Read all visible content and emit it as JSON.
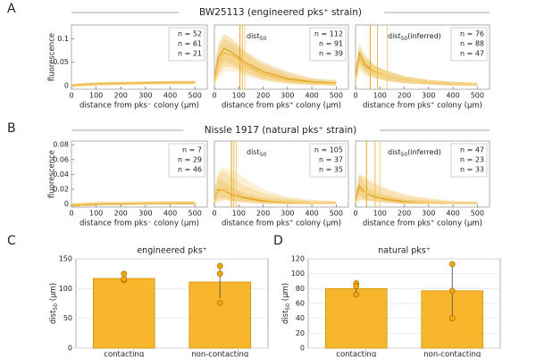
{
  "figure": {
    "panels": [
      {
        "letter": "A",
        "title": "BW25113 (engineered pks⁺ strain)"
      },
      {
        "letter": "B",
        "title": "Nissle 1917 (natural pks⁺ strain)"
      },
      {
        "letter": "C"
      },
      {
        "letter": "D"
      }
    ]
  },
  "chart_data": [
    {
      "type": "line",
      "x": [
        0,
        15,
        40,
        75,
        125,
        200,
        300,
        400,
        500
      ],
      "xlim": [
        0,
        550
      ],
      "xticks": [
        0,
        100,
        200,
        300,
        400,
        500
      ],
      "ylim": [
        -0.008,
        0.13
      ],
      "yticks": [
        0,
        0.05,
        0.1
      ],
      "ylabel": "fluorescence",
      "xlabel": "distance from pks⁻ colony (μm)",
      "series": [
        {
          "name": "n = 52",
          "color": "#dba31f",
          "values": [
            0,
            0.001,
            0.002,
            0.003,
            0.004,
            0.005,
            0.006,
            0.007,
            0.007
          ],
          "lower": [
            -0.003,
            -0.002,
            -0.001,
            0,
            0.001,
            0.002,
            0.003,
            0.004,
            0.004
          ],
          "upper": [
            0.003,
            0.004,
            0.005,
            0.006,
            0.007,
            0.008,
            0.009,
            0.01,
            0.01
          ]
        },
        {
          "name": "n = 61",
          "color": "#f2b83e",
          "values": [
            0,
            0.001,
            0.002,
            0.003,
            0.004,
            0.005,
            0.005,
            0.006,
            0.006
          ],
          "lower": [
            -0.003,
            -0.002,
            -0.001,
            0,
            0.001,
            0.002,
            0.002,
            0.003,
            0.003
          ],
          "upper": [
            0.003,
            0.004,
            0.005,
            0.006,
            0.007,
            0.008,
            0.008,
            0.009,
            0.009
          ]
        },
        {
          "name": "n = 21",
          "color": "#f6cf7e",
          "values": [
            -0.002,
            -0.001,
            0,
            0.001,
            0.002,
            0.003,
            0.004,
            0.005,
            0.005
          ],
          "lower": [
            -0.005,
            -0.004,
            -0.003,
            -0.002,
            -0.001,
            0,
            0.001,
            0.002,
            0.002
          ],
          "upper": [
            0.001,
            0.002,
            0.003,
            0.004,
            0.005,
            0.006,
            0.007,
            0.008,
            0.008
          ]
        }
      ]
    },
    {
      "type": "line",
      "x": [
        0,
        15,
        40,
        75,
        125,
        200,
        300,
        400,
        500
      ],
      "xlim": [
        0,
        550
      ],
      "xticks": [
        0,
        100,
        200,
        300,
        400,
        500
      ],
      "ylim": [
        -0.008,
        0.13
      ],
      "xlabel": "distance from pks⁺ colony (μm)",
      "annotation": [
        "dist",
        "50"
      ],
      "series": [
        {
          "name": "n = 112",
          "color": "#dba31f",
          "dist50": 105,
          "values": [
            0.01,
            0.06,
            0.08,
            0.07,
            0.05,
            0.03,
            0.015,
            0.008,
            0.005
          ],
          "lower": [
            0,
            0.03,
            0.05,
            0.045,
            0.03,
            0.015,
            0.006,
            0.002,
            0
          ],
          "upper": [
            0.03,
            0.09,
            0.11,
            0.1,
            0.075,
            0.05,
            0.03,
            0.016,
            0.012
          ]
        },
        {
          "name": "n = 91",
          "color": "#f2b83e",
          "dist50": 115,
          "values": [
            0.01,
            0.05,
            0.07,
            0.065,
            0.045,
            0.025,
            0.012,
            0.006,
            0.004
          ],
          "lower": [
            0,
            0.02,
            0.04,
            0.04,
            0.025,
            0.012,
            0.004,
            0.001,
            0
          ],
          "upper": [
            0.03,
            0.08,
            0.1,
            0.09,
            0.07,
            0.045,
            0.025,
            0.014,
            0.01
          ]
        },
        {
          "name": "n = 39",
          "color": "#f6cf7e",
          "dist50": 125,
          "values": [
            0.005,
            0.04,
            0.06,
            0.055,
            0.04,
            0.022,
            0.01,
            0.005,
            0.003
          ],
          "lower": [
            0,
            0.015,
            0.03,
            0.03,
            0.02,
            0.01,
            0.003,
            0,
            0
          ],
          "upper": [
            0.02,
            0.07,
            0.09,
            0.085,
            0.065,
            0.04,
            0.02,
            0.012,
            0.008
          ]
        }
      ]
    },
    {
      "type": "line",
      "x": [
        0,
        15,
        40,
        75,
        125,
        200,
        300,
        400,
        500
      ],
      "xlim": [
        0,
        550
      ],
      "xticks": [
        0,
        100,
        200,
        300,
        400,
        500
      ],
      "ylim": [
        -0.008,
        0.13
      ],
      "xlabel": "distance from pks⁺ colony (μm)",
      "annotation": [
        "dist",
        "50",
        "(inferred)"
      ],
      "series": [
        {
          "name": "n = 76",
          "color": "#dba31f",
          "dist50": 60,
          "values": [
            0.02,
            0.07,
            0.045,
            0.03,
            0.02,
            0.012,
            0.006,
            0.003,
            0.002
          ],
          "lower": [
            0.005,
            0.05,
            0.03,
            0.018,
            0.01,
            0.005,
            0.002,
            0,
            0
          ],
          "upper": [
            0.035,
            0.09,
            0.065,
            0.045,
            0.032,
            0.02,
            0.012,
            0.008,
            0.006
          ]
        },
        {
          "name": "n = 88",
          "color": "#f2b83e",
          "dist50": 90,
          "values": [
            0.015,
            0.06,
            0.04,
            0.03,
            0.02,
            0.012,
            0.006,
            0.003,
            0.002
          ],
          "lower": [
            0,
            0.04,
            0.025,
            0.018,
            0.01,
            0.005,
            0.002,
            0,
            0
          ],
          "upper": [
            0.03,
            0.08,
            0.06,
            0.045,
            0.032,
            0.02,
            0.012,
            0.008,
            0.006
          ]
        },
        {
          "name": "n = 47",
          "color": "#f6cf7e",
          "dist50": 130,
          "values": [
            0.01,
            0.05,
            0.035,
            0.027,
            0.02,
            0.012,
            0.006,
            0.003,
            0.002
          ],
          "lower": [
            0,
            0.03,
            0.02,
            0.015,
            0.01,
            0.005,
            0.002,
            0,
            0
          ],
          "upper": [
            0.025,
            0.07,
            0.055,
            0.042,
            0.032,
            0.02,
            0.012,
            0.008,
            0.006
          ]
        }
      ]
    },
    {
      "type": "line",
      "x": [
        0,
        15,
        40,
        75,
        125,
        200,
        300,
        400,
        500
      ],
      "xlim": [
        0,
        550
      ],
      "xticks": [
        0,
        100,
        200,
        300,
        400,
        500
      ],
      "ylim": [
        -0.004,
        0.085
      ],
      "yticks": [
        0,
        0.02,
        0.04,
        0.06,
        0.08
      ],
      "ylabel": "fluorescence",
      "xlabel": "distance from pks⁻ colony (μm)",
      "series": [
        {
          "name": "n = 7",
          "color": "#dba31f",
          "values": [
            -0.002,
            -0.002,
            -0.001,
            -0.001,
            0,
            0,
            0.001,
            0.001,
            0.001
          ],
          "lower": [
            -0.004,
            -0.004,
            -0.003,
            -0.003,
            -0.002,
            -0.002,
            -0.001,
            -0.001,
            -0.001
          ],
          "upper": [
            0,
            0,
            0.001,
            0.001,
            0.002,
            0.002,
            0.003,
            0.003,
            0.003
          ]
        },
        {
          "name": "n = 29",
          "color": "#f2b83e",
          "values": [
            -0.001,
            -0.001,
            0,
            0,
            0.001,
            0.001,
            0.001,
            0.002,
            0.002
          ],
          "lower": [
            -0.003,
            -0.003,
            -0.002,
            -0.002,
            -0.001,
            -0.001,
            -0.001,
            0,
            0
          ],
          "upper": [
            0.001,
            0.001,
            0.002,
            0.002,
            0.003,
            0.003,
            0.003,
            0.004,
            0.004
          ]
        },
        {
          "name": "n = 46",
          "color": "#f6cf7e",
          "values": [
            0,
            0,
            0,
            0.001,
            0.001,
            0.001,
            0.002,
            0.002,
            0.002
          ],
          "lower": [
            -0.002,
            -0.002,
            -0.002,
            -0.001,
            -0.001,
            -0.001,
            0,
            0,
            0
          ],
          "upper": [
            0.002,
            0.002,
            0.002,
            0.003,
            0.003,
            0.003,
            0.004,
            0.004,
            0.004
          ]
        }
      ]
    },
    {
      "type": "line",
      "x": [
        0,
        15,
        40,
        75,
        125,
        200,
        300,
        400,
        500
      ],
      "xlim": [
        0,
        550
      ],
      "xticks": [
        0,
        100,
        200,
        300,
        400,
        500
      ],
      "ylim": [
        -0.004,
        0.085
      ],
      "xlabel": "distance from pks⁺ colony (μm)",
      "annotation": [
        "dist",
        "50"
      ],
      "series": [
        {
          "name": "n = 105",
          "color": "#dba31f",
          "dist50": 70,
          "values": [
            0.005,
            0.02,
            0.018,
            0.012,
            0.008,
            0.004,
            0.002,
            0.001,
            0.001
          ],
          "lower": [
            0,
            0.008,
            0.008,
            0.005,
            0.003,
            0.001,
            0,
            0,
            0
          ],
          "upper": [
            0.015,
            0.035,
            0.03,
            0.022,
            0.015,
            0.009,
            0.006,
            0.004,
            0.003
          ]
        },
        {
          "name": "n = 37",
          "color": "#f2b83e",
          "dist50": 80,
          "values": [
            0.005,
            0.018,
            0.02,
            0.015,
            0.01,
            0.005,
            0.002,
            0.001,
            0.001
          ],
          "lower": [
            0,
            0.005,
            0.006,
            0.004,
            0.002,
            0,
            0,
            0,
            0
          ],
          "upper": [
            0.02,
            0.04,
            0.045,
            0.035,
            0.025,
            0.015,
            0.008,
            0.005,
            0.004
          ]
        },
        {
          "name": "n = 35",
          "color": "#f6cf7e",
          "dist50": 90,
          "values": [
            0.004,
            0.015,
            0.018,
            0.016,
            0.011,
            0.006,
            0.003,
            0.001,
            0.001
          ],
          "lower": [
            0,
            0.002,
            0.004,
            0.004,
            0.002,
            0,
            0,
            0,
            0
          ],
          "upper": [
            0.02,
            0.045,
            0.05,
            0.045,
            0.035,
            0.02,
            0.01,
            0.006,
            0.004
          ]
        }
      ]
    },
    {
      "type": "line",
      "x": [
        0,
        15,
        40,
        75,
        125,
        200,
        300,
        400,
        500
      ],
      "xlim": [
        0,
        550
      ],
      "xticks": [
        0,
        100,
        200,
        300,
        400,
        500
      ],
      "ylim": [
        -0.004,
        0.085
      ],
      "xlabel": "distance from pks⁺ colony (μm)",
      "annotation": [
        "dist",
        "50",
        "(inferred)"
      ],
      "series": [
        {
          "name": "n = 47",
          "color": "#dba31f",
          "dist50": 45,
          "values": [
            0.005,
            0.025,
            0.015,
            0.01,
            0.006,
            0.003,
            0.002,
            0.001,
            0.001
          ],
          "lower": [
            0,
            0.012,
            0.006,
            0.004,
            0.002,
            0,
            0,
            0,
            0
          ],
          "upper": [
            0.012,
            0.04,
            0.025,
            0.018,
            0.012,
            0.007,
            0.005,
            0.003,
            0.003
          ]
        },
        {
          "name": "n = 23",
          "color": "#f2b83e",
          "dist50": 80,
          "values": [
            0.004,
            0.02,
            0.016,
            0.012,
            0.008,
            0.004,
            0.002,
            0.001,
            0.001
          ],
          "lower": [
            0,
            0.006,
            0.005,
            0.004,
            0.002,
            0,
            0,
            0,
            0
          ],
          "upper": [
            0.015,
            0.04,
            0.035,
            0.027,
            0.02,
            0.012,
            0.007,
            0.004,
            0.003
          ]
        },
        {
          "name": "n = 33",
          "color": "#f6cf7e",
          "dist50": 100,
          "values": [
            0.003,
            0.016,
            0.015,
            0.012,
            0.009,
            0.005,
            0.002,
            0.001,
            0.001
          ],
          "lower": [
            0,
            0.004,
            0.004,
            0.003,
            0.002,
            0,
            0,
            0,
            0
          ],
          "upper": [
            0.015,
            0.04,
            0.038,
            0.03,
            0.022,
            0.014,
            0.008,
            0.005,
            0.003
          ]
        }
      ]
    },
    {
      "type": "bar",
      "title": "engineered pks⁺",
      "ylabel": [
        "dist",
        "50",
        " (μm)"
      ],
      "categories": [
        "contacting",
        "non-contacting"
      ],
      "values": [
        117,
        111
      ],
      "errors": [
        5,
        27
      ],
      "points": [
        [
          125,
          114,
          116
        ],
        [
          138,
          125,
          76
        ]
      ],
      "color": "#f8b62c",
      "ylim": [
        0,
        150
      ],
      "yticks": [
        0,
        50,
        100,
        150
      ],
      "grid": true
    },
    {
      "type": "bar",
      "title": "natural pks⁺",
      "ylabel": [
        "dist",
        "50",
        " (μm)"
      ],
      "categories": [
        "contacting",
        "non-contacting"
      ],
      "values": [
        80,
        77
      ],
      "errors": [
        8,
        36
      ],
      "points": [
        [
          87,
          83,
          72
        ],
        [
          113,
          77,
          40
        ]
      ],
      "color": "#f8b62c",
      "ylim": [
        0,
        120
      ],
      "yticks": [
        0,
        20,
        40,
        60,
        80,
        100,
        120
      ],
      "grid": true
    }
  ]
}
